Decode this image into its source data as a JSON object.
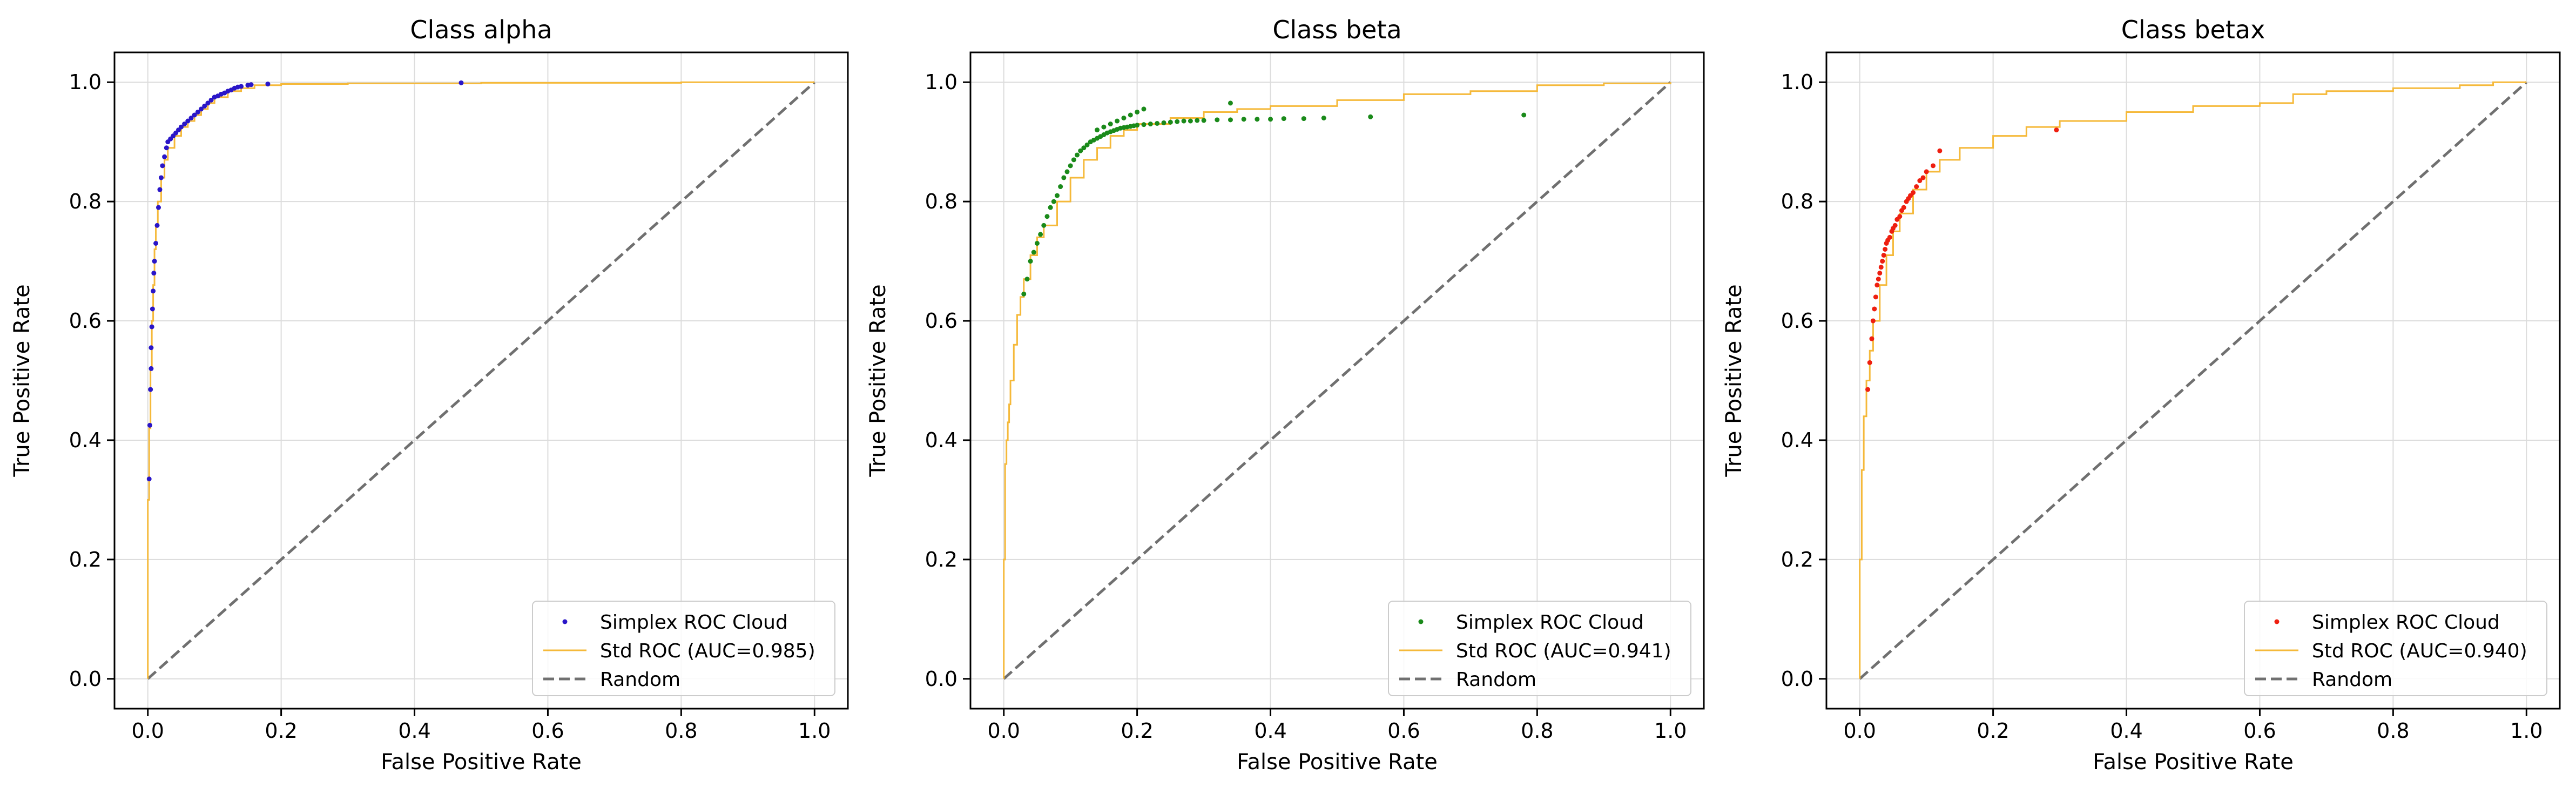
{
  "chart_data": [
    {
      "type": "scatter",
      "title": "Class alpha",
      "xlabel": "False Positive Rate",
      "ylabel": "True Positive Rate",
      "xlim": [
        -0.05,
        1.05
      ],
      "ylim": [
        -0.05,
        1.05
      ],
      "xticks": [
        "0.0",
        "0.2",
        "0.4",
        "0.6",
        "0.8",
        "1.0"
      ],
      "yticks": [
        "0.0",
        "0.2",
        "0.4",
        "0.6",
        "0.8",
        "1.0"
      ],
      "grid": true,
      "legend_position": "lower-right",
      "legend": [
        "Simplex ROC Cloud",
        "Std ROC (AUC=0.985)",
        "Random"
      ],
      "cloud_color": "#2a16c8",
      "std_color": "#f5b93a",
      "random_color": "#707070",
      "series": [
        {
          "name": "Simplex ROC Cloud",
          "kind": "scatter",
          "x": [
            0.002,
            0.003,
            0.004,
            0.005,
            0.005,
            0.006,
            0.007,
            0.008,
            0.009,
            0.01,
            0.012,
            0.014,
            0.016,
            0.018,
            0.02,
            0.022,
            0.025,
            0.028,
            0.03,
            0.034,
            0.038,
            0.042,
            0.046,
            0.05,
            0.055,
            0.06,
            0.065,
            0.07,
            0.075,
            0.08,
            0.085,
            0.09,
            0.095,
            0.1,
            0.105,
            0.11,
            0.115,
            0.12,
            0.125,
            0.13,
            0.135,
            0.14,
            0.15,
            0.155,
            0.18,
            0.47
          ],
          "y": [
            0.335,
            0.425,
            0.485,
            0.52,
            0.555,
            0.59,
            0.62,
            0.65,
            0.68,
            0.7,
            0.73,
            0.76,
            0.79,
            0.82,
            0.84,
            0.86,
            0.875,
            0.89,
            0.9,
            0.905,
            0.91,
            0.915,
            0.92,
            0.925,
            0.93,
            0.935,
            0.94,
            0.945,
            0.95,
            0.955,
            0.96,
            0.965,
            0.97,
            0.975,
            0.977,
            0.98,
            0.982,
            0.985,
            0.987,
            0.99,
            0.992,
            0.993,
            0.995,
            0.996,
            0.997,
            0.999
          ]
        },
        {
          "name": "Std ROC (AUC=0.985)",
          "kind": "line",
          "x": [
            0,
            0,
            0.002,
            0.004,
            0.006,
            0.008,
            0.01,
            0.012,
            0.015,
            0.02,
            0.025,
            0.03,
            0.04,
            0.05,
            0.06,
            0.07,
            0.08,
            0.09,
            0.1,
            0.12,
            0.14,
            0.16,
            0.2,
            0.3,
            0.5,
            0.8,
            1.0
          ],
          "y": [
            0,
            0.3,
            0.42,
            0.52,
            0.6,
            0.66,
            0.72,
            0.76,
            0.8,
            0.84,
            0.87,
            0.89,
            0.91,
            0.925,
            0.935,
            0.945,
            0.955,
            0.965,
            0.975,
            0.985,
            0.99,
            0.995,
            0.997,
            0.998,
            0.999,
            1.0,
            1.0
          ]
        },
        {
          "name": "Random",
          "kind": "line",
          "x": [
            0,
            1
          ],
          "y": [
            0,
            1
          ]
        }
      ]
    },
    {
      "type": "scatter",
      "title": "Class beta",
      "xlabel": "False Positive Rate",
      "ylabel": "True Positive Rate",
      "xlim": [
        -0.05,
        1.05
      ],
      "ylim": [
        -0.05,
        1.05
      ],
      "xticks": [
        "0.0",
        "0.2",
        "0.4",
        "0.6",
        "0.8",
        "1.0"
      ],
      "yticks": [
        "0.0",
        "0.2",
        "0.4",
        "0.6",
        "0.8",
        "1.0"
      ],
      "grid": true,
      "legend_position": "lower-right",
      "legend": [
        "Simplex ROC Cloud",
        "Std ROC (AUC=0.941)",
        "Random"
      ],
      "cloud_color": "#1a8a1a",
      "std_color": "#f5b93a",
      "random_color": "#707070",
      "series": [
        {
          "name": "Simplex ROC Cloud",
          "kind": "scatter",
          "x": [
            0.03,
            0.035,
            0.04,
            0.045,
            0.05,
            0.055,
            0.06,
            0.065,
            0.07,
            0.075,
            0.08,
            0.085,
            0.09,
            0.095,
            0.1,
            0.105,
            0.11,
            0.115,
            0.12,
            0.125,
            0.13,
            0.135,
            0.14,
            0.145,
            0.15,
            0.155,
            0.16,
            0.165,
            0.17,
            0.175,
            0.18,
            0.185,
            0.19,
            0.195,
            0.2,
            0.21,
            0.22,
            0.23,
            0.24,
            0.25,
            0.26,
            0.27,
            0.28,
            0.29,
            0.3,
            0.32,
            0.34,
            0.36,
            0.38,
            0.4,
            0.42,
            0.45,
            0.48,
            0.55,
            0.78,
            0.14,
            0.15,
            0.16,
            0.17,
            0.18,
            0.19,
            0.2,
            0.21,
            0.34
          ],
          "y": [
            0.645,
            0.67,
            0.7,
            0.715,
            0.73,
            0.745,
            0.76,
            0.775,
            0.79,
            0.8,
            0.81,
            0.825,
            0.84,
            0.85,
            0.86,
            0.87,
            0.878,
            0.885,
            0.89,
            0.895,
            0.9,
            0.903,
            0.906,
            0.909,
            0.912,
            0.915,
            0.917,
            0.919,
            0.921,
            0.923,
            0.924,
            0.925,
            0.926,
            0.927,
            0.928,
            0.929,
            0.93,
            0.931,
            0.932,
            0.933,
            0.934,
            0.935,
            0.935,
            0.936,
            0.936,
            0.937,
            0.937,
            0.938,
            0.938,
            0.938,
            0.939,
            0.939,
            0.94,
            0.942,
            0.945,
            0.92,
            0.925,
            0.93,
            0.935,
            0.94,
            0.945,
            0.95,
            0.955,
            0.965
          ]
        },
        {
          "name": "Std ROC (AUC=0.941)",
          "kind": "line",
          "x": [
            0,
            0,
            0.002,
            0.004,
            0.006,
            0.008,
            0.01,
            0.015,
            0.02,
            0.025,
            0.03,
            0.04,
            0.05,
            0.06,
            0.08,
            0.1,
            0.12,
            0.14,
            0.16,
            0.18,
            0.2,
            0.25,
            0.3,
            0.35,
            0.4,
            0.5,
            0.6,
            0.7,
            0.8,
            0.9,
            1.0
          ],
          "y": [
            0,
            0.2,
            0.36,
            0.4,
            0.43,
            0.46,
            0.5,
            0.56,
            0.61,
            0.64,
            0.67,
            0.71,
            0.74,
            0.76,
            0.8,
            0.84,
            0.87,
            0.89,
            0.91,
            0.92,
            0.93,
            0.94,
            0.95,
            0.955,
            0.96,
            0.97,
            0.98,
            0.985,
            0.995,
            0.998,
            1.0
          ]
        },
        {
          "name": "Random",
          "kind": "line",
          "x": [
            0,
            1
          ],
          "y": [
            0,
            1
          ]
        }
      ]
    },
    {
      "type": "scatter",
      "title": "Class betax",
      "xlabel": "False Positive Rate",
      "ylabel": "True Positive Rate",
      "xlim": [
        -0.05,
        1.05
      ],
      "ylim": [
        -0.05,
        1.05
      ],
      "xticks": [
        "0.0",
        "0.2",
        "0.4",
        "0.6",
        "0.8",
        "1.0"
      ],
      "yticks": [
        "0.0",
        "0.2",
        "0.4",
        "0.6",
        "0.8",
        "1.0"
      ],
      "grid": true,
      "legend_position": "lower-right",
      "legend": [
        "Simplex ROC Cloud",
        "Std ROC (AUC=0.940)",
        "Random"
      ],
      "cloud_color": "#ee1f10",
      "std_color": "#f5b93a",
      "random_color": "#707070",
      "series": [
        {
          "name": "Simplex ROC Cloud",
          "kind": "scatter",
          "x": [
            0.012,
            0.015,
            0.018,
            0.02,
            0.022,
            0.024,
            0.026,
            0.028,
            0.03,
            0.032,
            0.034,
            0.036,
            0.038,
            0.04,
            0.042,
            0.045,
            0.048,
            0.05,
            0.053,
            0.056,
            0.06,
            0.063,
            0.066,
            0.07,
            0.073,
            0.076,
            0.08,
            0.085,
            0.09,
            0.095,
            0.1,
            0.11,
            0.12,
            0.295
          ],
          "y": [
            0.485,
            0.53,
            0.57,
            0.6,
            0.62,
            0.64,
            0.66,
            0.67,
            0.68,
            0.69,
            0.7,
            0.71,
            0.72,
            0.73,
            0.735,
            0.74,
            0.75,
            0.755,
            0.76,
            0.77,
            0.775,
            0.785,
            0.79,
            0.8,
            0.805,
            0.81,
            0.815,
            0.825,
            0.835,
            0.84,
            0.85,
            0.86,
            0.885,
            0.92
          ]
        },
        {
          "name": "Std ROC (AUC=0.940)",
          "kind": "line",
          "x": [
            0,
            0,
            0.003,
            0.006,
            0.01,
            0.015,
            0.02,
            0.03,
            0.04,
            0.05,
            0.06,
            0.08,
            0.1,
            0.12,
            0.15,
            0.2,
            0.25,
            0.3,
            0.4,
            0.5,
            0.6,
            0.65,
            0.7,
            0.8,
            0.9,
            0.95,
            1.0
          ],
          "y": [
            0,
            0.2,
            0.35,
            0.44,
            0.5,
            0.55,
            0.6,
            0.66,
            0.71,
            0.75,
            0.78,
            0.82,
            0.85,
            0.87,
            0.89,
            0.91,
            0.925,
            0.935,
            0.95,
            0.96,
            0.965,
            0.98,
            0.985,
            0.99,
            0.995,
            1.0,
            1.0
          ]
        },
        {
          "name": "Random",
          "kind": "line",
          "x": [
            0,
            1
          ],
          "y": [
            0,
            1
          ]
        }
      ]
    }
  ]
}
